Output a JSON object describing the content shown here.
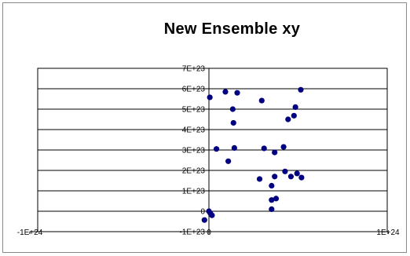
{
  "chart_data": {
    "type": "scatter",
    "title": "New Ensemble xy",
    "xlabel": "",
    "ylabel": "",
    "xlim": [
      -1e+24,
      1e+24
    ],
    "ylim": [
      -1e+23,
      7e+23
    ],
    "grid": "horizontal",
    "legend": "none",
    "marker_color": "#000080",
    "y_ticks": [
      {
        "value": 7e+23,
        "label": "7E+23"
      },
      {
        "value": 6e+23,
        "label": "6E+23"
      },
      {
        "value": 5e+23,
        "label": "5E+23"
      },
      {
        "value": 4e+23,
        "label": "4E+23"
      },
      {
        "value": 3e+23,
        "label": "3E+23"
      },
      {
        "value": 2e+23,
        "label": "2E+23"
      },
      {
        "value": 1e+23,
        "label": "1E+23"
      },
      {
        "value": 0,
        "label": "0"
      },
      {
        "value": -1e+23,
        "label": "-1E+23"
      }
    ],
    "x_ticks": [
      {
        "value": -1e+24,
        "label": "-1E+24"
      },
      {
        "value": 0,
        "label": "0"
      },
      {
        "value": 1e+24,
        "label": "1E+24"
      }
    ],
    "points": [
      {
        "x": 5e+21,
        "y": 5.58e+23
      },
      {
        "x": 9.2e+22,
        "y": 5.85e+23
      },
      {
        "x": 1.58e+23,
        "y": 5.8e+23
      },
      {
        "x": 2.95e+23,
        "y": 5.42e+23
      },
      {
        "x": 1.33e+23,
        "y": 5e+23
      },
      {
        "x": 1.37e+23,
        "y": 4.33e+23
      },
      {
        "x": 4.42e+23,
        "y": 4.5e+23
      },
      {
        "x": 4.75e+23,
        "y": 4.68e+23
      },
      {
        "x": 4.83e+23,
        "y": 5.1e+23
      },
      {
        "x": 5.13e+23,
        "y": 5.95e+23
      },
      {
        "x": 4.2e+22,
        "y": 3.05e+23
      },
      {
        "x": 1.42e+23,
        "y": 3.1e+23
      },
      {
        "x": 3.08e+23,
        "y": 3.08e+23
      },
      {
        "x": 3.67e+23,
        "y": 2.88e+23
      },
      {
        "x": 4.17e+23,
        "y": 3.15e+23
      },
      {
        "x": 1.08e+23,
        "y": 2.45e+23
      },
      {
        "x": 2.83e+23,
        "y": 1.58e+23
      },
      {
        "x": 3.67e+23,
        "y": 1.7e+23
      },
      {
        "x": 4.25e+23,
        "y": 1.95e+23
      },
      {
        "x": 4.92e+23,
        "y": 1.85e+23
      },
      {
        "x": 4.58e+23,
        "y": 1.7e+23
      },
      {
        "x": 5.17e+23,
        "y": 1.65e+23
      },
      {
        "x": 3.5e+23,
        "y": 1.25e+23
      },
      {
        "x": 3.5e+23,
        "y": 5.5e+22
      },
      {
        "x": 3.5e+23,
        "y": 1e+22
      },
      {
        "x": 3.75e+23,
        "y": 6.2e+22
      },
      {
        "x": 0.0,
        "y": 0.0
      },
      {
        "x": 8e+21,
        "y": -1e+22
      },
      {
        "x": 1.7e+22,
        "y": -2e+22
      },
      {
        "x": -2.5e+22,
        "y": -4.3e+22
      }
    ]
  }
}
